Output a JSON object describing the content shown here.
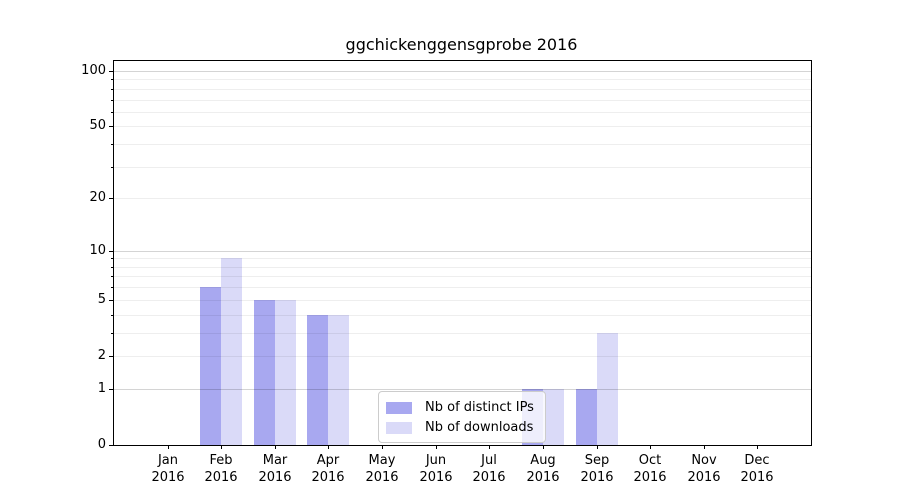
{
  "title": "ggchickenggensgprobe 2016",
  "colors": {
    "distinct_ips": "#a8a8f0",
    "downloads": "#dadaf8",
    "grid_major": "#d4d4d4",
    "grid_minor": "#ececec",
    "axis": "#000000"
  },
  "legend": {
    "items": [
      {
        "label": "Nb of distinct IPs",
        "color": "#a8a8f0"
      },
      {
        "label": "Nb of downloads",
        "color": "#dadaf8"
      }
    ]
  },
  "chart_data": {
    "type": "bar",
    "title": "ggchickenggensgprobe 2016",
    "categories": [
      "Jan 2016",
      "Feb 2016",
      "Mar 2016",
      "Apr 2016",
      "May 2016",
      "Jun 2016",
      "Jul 2016",
      "Aug 2016",
      "Sep 2016",
      "Oct 2016",
      "Nov 2016",
      "Dec 2016"
    ],
    "series": [
      {
        "name": "Nb of distinct IPs",
        "color": "#a8a8f0",
        "values": [
          0,
          6,
          5,
          4,
          0,
          0,
          0,
          1,
          1,
          0,
          0,
          0
        ]
      },
      {
        "name": "Nb of downloads",
        "color": "#dadaf8",
        "values": [
          0,
          9,
          5,
          4,
          0,
          0,
          0,
          1,
          3,
          0,
          0,
          0
        ]
      }
    ],
    "xlabel": "",
    "ylabel": "",
    "yscale": "log1p",
    "yticks": [
      0,
      1,
      2,
      5,
      10,
      20,
      50,
      100
    ],
    "minor_grid_values": [
      2,
      3,
      4,
      5,
      6,
      7,
      8,
      9,
      20,
      30,
      40,
      50,
      60,
      70,
      80,
      90
    ],
    "major_grid_values": [
      1,
      10,
      100
    ],
    "ylim": [
      0,
      112
    ],
    "grid": true,
    "legend_position": "inside-bottom-center"
  }
}
